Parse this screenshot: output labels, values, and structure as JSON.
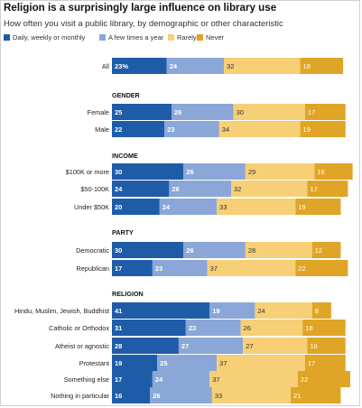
{
  "chart_data": {
    "type": "bar",
    "stacked": true,
    "orientation": "horizontal",
    "title": "Religion is a surprisingly large influence on library use",
    "subtitle": "How often you visit a public library, by demographic or other characteristic",
    "legend_position": "top-left",
    "grid": false,
    "series": [
      {
        "name": "Daily, weekly or monthly",
        "color": "#1f5ca8"
      },
      {
        "name": "A few times a year",
        "color": "#8aa7d7"
      },
      {
        "name": "Rarely",
        "color": "#f6cf76"
      },
      {
        "name": "Never",
        "color": "#e0a526"
      }
    ],
    "rows": [
      {
        "kind": "bar",
        "label": "All",
        "values": [
          23,
          24,
          32,
          18
        ],
        "value_labels": [
          "23%",
          "24",
          "32",
          "18"
        ]
      },
      {
        "kind": "section",
        "label": "GENDER"
      },
      {
        "kind": "bar",
        "label": "Female",
        "values": [
          25,
          26,
          30,
          17
        ],
        "value_labels": [
          "25",
          "26",
          "30",
          "17"
        ]
      },
      {
        "kind": "bar",
        "label": "Male",
        "values": [
          22,
          23,
          34,
          19
        ],
        "value_labels": [
          "22",
          "23",
          "34",
          "19"
        ]
      },
      {
        "kind": "section",
        "label": "INCOME"
      },
      {
        "kind": "bar",
        "label": "$100K or more",
        "values": [
          30,
          26,
          29,
          16
        ],
        "value_labels": [
          "30",
          "26",
          "29",
          "16"
        ]
      },
      {
        "kind": "bar",
        "label": "$50-100K",
        "values": [
          24,
          26,
          32,
          17
        ],
        "value_labels": [
          "24",
          "26",
          "32",
          "17"
        ]
      },
      {
        "kind": "bar",
        "label": "Under $50K",
        "values": [
          20,
          24,
          33,
          19
        ],
        "value_labels": [
          "20",
          "24",
          "33",
          "19"
        ]
      },
      {
        "kind": "section",
        "label": "PARTY"
      },
      {
        "kind": "bar",
        "label": "Democratic",
        "values": [
          30,
          26,
          28,
          12
        ],
        "value_labels": [
          "30",
          "26",
          "28",
          "12"
        ]
      },
      {
        "kind": "bar",
        "label": "Republican",
        "values": [
          17,
          23,
          37,
          22
        ],
        "value_labels": [
          "17",
          "23",
          "37",
          "22"
        ]
      },
      {
        "kind": "section",
        "label": "RELIGION"
      },
      {
        "kind": "bar",
        "label": "Hindu, Muslim, Jewish, Buddhist",
        "values": [
          41,
          19,
          24,
          8
        ],
        "value_labels": [
          "41",
          "19",
          "24",
          "8"
        ]
      },
      {
        "kind": "bar",
        "label": "Catholic or Orthodox",
        "values": [
          31,
          23,
          26,
          18
        ],
        "value_labels": [
          "31",
          "23",
          "26",
          "18"
        ]
      },
      {
        "kind": "bar",
        "label": "Atheist or agnostic",
        "values": [
          28,
          27,
          27,
          16
        ],
        "value_labels": [
          "28",
          "27",
          "27",
          "16"
        ]
      },
      {
        "kind": "bar",
        "label": "Protestant",
        "values": [
          19,
          25,
          37,
          17
        ],
        "value_labels": [
          "19",
          "25",
          "37",
          "17"
        ]
      },
      {
        "kind": "bar",
        "label": "Something else",
        "values": [
          17,
          24,
          37,
          22
        ],
        "value_labels": [
          "17",
          "24",
          "37",
          "22"
        ]
      },
      {
        "kind": "bar",
        "label": "Nothing in particular",
        "values": [
          16,
          26,
          33,
          21
        ],
        "value_labels": [
          "16",
          "26",
          "33",
          "21"
        ]
      }
    ]
  }
}
